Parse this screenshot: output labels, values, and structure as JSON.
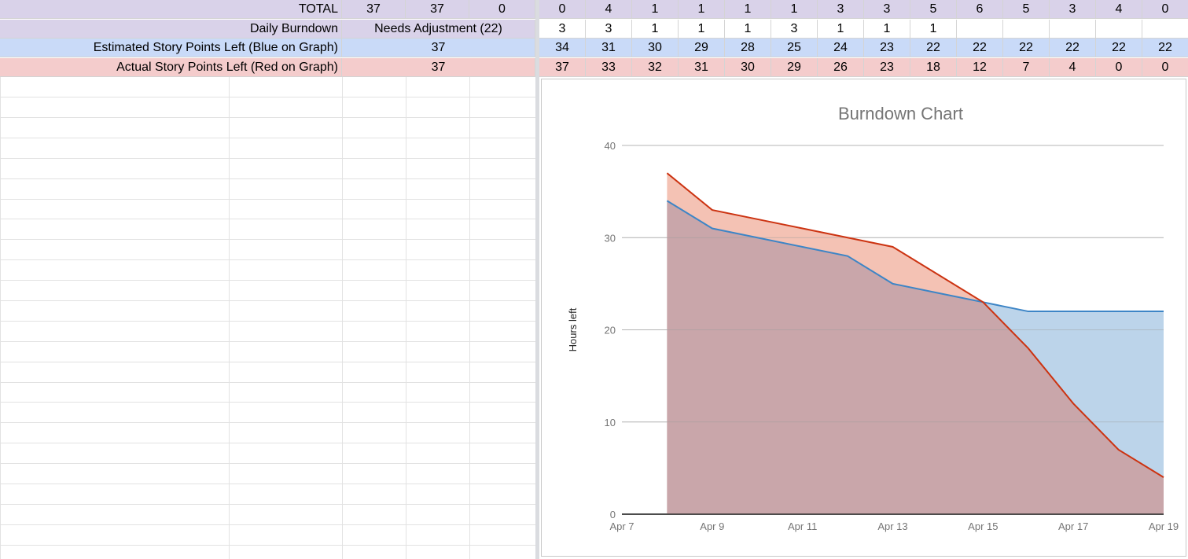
{
  "sheet": {
    "rows": [
      {
        "label": "TOTAL",
        "left_values": [
          "37",
          "37",
          "0"
        ],
        "daily": [
          "0",
          "4",
          "1",
          "1",
          "1",
          "1",
          "3",
          "3",
          "5",
          "6",
          "5",
          "3",
          "4",
          "0"
        ],
        "color": "#d9d2e9"
      },
      {
        "label": "Daily Burndown",
        "merged_value": "Needs Adjustment (22)",
        "daily": [
          "3",
          "3",
          "1",
          "1",
          "1",
          "3",
          "1",
          "1",
          "1",
          "",
          "",
          "",
          "",
          ""
        ],
        "color": "#d9d2e9"
      },
      {
        "label": "Estimated Story Points Left (Blue on Graph)",
        "merged_value": "37",
        "daily": [
          "34",
          "31",
          "30",
          "29",
          "28",
          "25",
          "24",
          "23",
          "22",
          "22",
          "22",
          "22",
          "22",
          "22"
        ],
        "color": "#c9daf8"
      },
      {
        "label": "Actual Story Points Left (Red on Graph)",
        "merged_value": "37",
        "daily": [
          "37",
          "33",
          "32",
          "31",
          "30",
          "29",
          "26",
          "23",
          "18",
          "12",
          "7",
          "4",
          "0",
          "0"
        ],
        "color": "#f4cccc"
      }
    ]
  },
  "chart_data": {
    "type": "area",
    "title": "Burndown Chart",
    "xlabel": "",
    "ylabel": "Hours left",
    "x_ticks": [
      "Apr 7",
      "Apr 9",
      "Apr 11",
      "Apr 13",
      "Apr 15",
      "Apr 17",
      "Apr 19"
    ],
    "x_range_days": [
      7,
      19
    ],
    "y_ticks": [
      0,
      10,
      20,
      30,
      40
    ],
    "ylim": [
      0,
      40
    ],
    "grid": true,
    "legend": "none",
    "x_days": [
      8,
      9,
      10,
      11,
      12,
      13,
      14,
      15,
      16,
      17,
      18,
      19
    ],
    "series": [
      {
        "color": "#3d85c6",
        "fill": "#bcd4ea",
        "values": [
          34,
          31,
          30,
          29,
          28,
          25,
          24,
          23,
          22,
          22,
          22,
          22
        ]
      },
      {
        "color": "#cc3311",
        "fill": "#f4c2b4",
        "values": [
          37,
          33,
          32,
          31,
          30,
          29,
          26,
          23,
          18,
          12,
          7,
          4
        ]
      }
    ],
    "overlap_fill": "#c9a6aa"
  }
}
